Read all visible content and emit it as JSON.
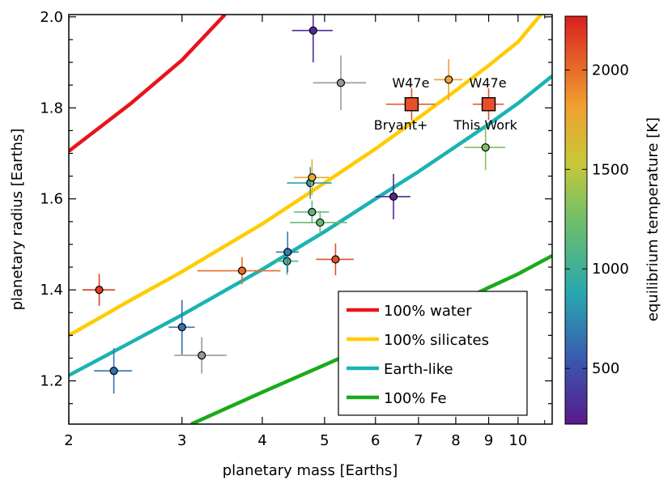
{
  "chart_data": {
    "type": "scatter",
    "title": "",
    "xlabel": "planetary mass [Earths]",
    "ylabel": "planetary radius [Earths]",
    "xscale": "log",
    "xlim": [
      2.0,
      11.3
    ],
    "ylim": [
      1.105,
      2.005
    ],
    "xticks_major": [
      2,
      3,
      4,
      5,
      6,
      7,
      8,
      9,
      10
    ],
    "xticks_minor": [
      11
    ],
    "yticks": [
      1.2,
      1.4,
      1.6,
      1.8,
      2.0
    ],
    "ytick_labels": [
      "1.2",
      "1.4",
      "1.6",
      "1.8",
      "2.0"
    ],
    "grid": false,
    "colorbar": {
      "label": "equilibrium temperature [K]",
      "range": [
        220,
        2270
      ],
      "ticks": [
        500,
        1000,
        1500,
        2000
      ],
      "tick_labels": [
        "500",
        "1000",
        "1500",
        "2000"
      ]
    },
    "curves": [
      {
        "name": "100% water",
        "color": "#e8141c",
        "x": [
          2.0,
          2.5,
          3.0,
          3.5
        ],
        "y": [
          1.705,
          1.81,
          1.905,
          2.005
        ]
      },
      {
        "name": "100% silicates",
        "color": "#ffcc00",
        "x": [
          2.0,
          2.5,
          3.0,
          4.0,
          5.0,
          6.0,
          7.0,
          8.0,
          9.0,
          10.0,
          10.85
        ],
        "y": [
          1.3,
          1.378,
          1.44,
          1.545,
          1.635,
          1.71,
          1.778,
          1.838,
          1.893,
          1.945,
          2.005
        ]
      },
      {
        "name": "Earth-like",
        "color": "#1ab3b3",
        "x": [
          2.0,
          2.5,
          3.0,
          4.0,
          5.0,
          6.0,
          7.0,
          8.0,
          9.0,
          10.0,
          11.3
        ],
        "y": [
          1.212,
          1.285,
          1.345,
          1.445,
          1.528,
          1.6,
          1.66,
          1.715,
          1.764,
          1.81,
          1.87
        ]
      },
      {
        "name": "100% Fe",
        "color": "#1aaa1a",
        "x": [
          3.1,
          4.0,
          5.0,
          6.0,
          7.0,
          8.0,
          9.0,
          10.0,
          11.3
        ],
        "y": [
          1.105,
          1.175,
          1.235,
          1.285,
          1.33,
          1.37,
          1.405,
          1.435,
          1.475
        ]
      }
    ],
    "points": [
      {
        "x": 2.23,
        "y": 1.4,
        "xerr": 0.13,
        "yerr": 0.035,
        "teq": 2170
      },
      {
        "x": 2.35,
        "y": 1.222,
        "xerr": 0.16,
        "yerr": 0.05,
        "teq": 640
      },
      {
        "x": 3.0,
        "y": 1.318,
        "xerr": 0.14,
        "yerr": 0.06,
        "teq": 650
      },
      {
        "x": 3.22,
        "y": 1.256,
        "xerr": 0.3,
        "yerr": 0.04,
        "teq": null
      },
      {
        "x": 3.72,
        "y": 1.442,
        "xerr": 0.55,
        "yerr": 0.03,
        "teq": 2000
      },
      {
        "x": 4.37,
        "y": 1.463,
        "xerr": 0.18,
        "yerr": 0.03,
        "teq": 1100
      },
      {
        "x": 4.38,
        "y": 1.483,
        "xerr": 0.18,
        "yerr": 0.045,
        "teq": 700
      },
      {
        "x": 4.8,
        "y": 1.97,
        "xerr": 0.35,
        "yerr": 0.07,
        "teq": 310
      },
      {
        "x": 4.75,
        "y": 1.635,
        "xerr": 0.38,
        "yerr": 0.035,
        "teq": 850
      },
      {
        "x": 4.78,
        "y": 1.647,
        "xerr": 0.3,
        "yerr": 0.04,
        "teq": 1750
      },
      {
        "x": 4.78,
        "y": 1.571,
        "xerr": 0.3,
        "yerr": 0.025,
        "teq": 1150
      },
      {
        "x": 4.92,
        "y": 1.548,
        "xerr": 0.5,
        "yerr": 0.025,
        "teq": 1200
      },
      {
        "x": 5.2,
        "y": 1.467,
        "xerr": 0.35,
        "yerr": 0.035,
        "teq": 2100
      },
      {
        "x": 5.3,
        "y": 1.855,
        "xerr": 0.5,
        "yerr": 0.06,
        "teq": null
      },
      {
        "x": 6.4,
        "y": 1.605,
        "xerr": 0.4,
        "yerr": 0.05,
        "teq": 280
      },
      {
        "x": 7.8,
        "y": 1.862,
        "xerr": 0.4,
        "yerr": 0.045,
        "teq": 1800
      },
      {
        "x": 8.9,
        "y": 1.713,
        "xerr": 0.65,
        "yerr": 0.05,
        "teq": 1300
      }
    ],
    "highlights": [
      {
        "x": 6.83,
        "y": 1.808,
        "xerr": 0.6,
        "yerr": 0.035,
        "label_top": "W47e",
        "label_bottom": "Bryant+",
        "color": "#e8502a"
      },
      {
        "x": 9.0,
        "y": 1.808,
        "xerr": 0.5,
        "yerr": 0.035,
        "label_top": "W47e",
        "label_bottom": "This Work",
        "color": "#e8502a"
      }
    ],
    "legend": {
      "position": "bottom-right",
      "entries": [
        "100% water",
        "100% silicates",
        "Earth-like",
        "100% Fe"
      ]
    }
  }
}
